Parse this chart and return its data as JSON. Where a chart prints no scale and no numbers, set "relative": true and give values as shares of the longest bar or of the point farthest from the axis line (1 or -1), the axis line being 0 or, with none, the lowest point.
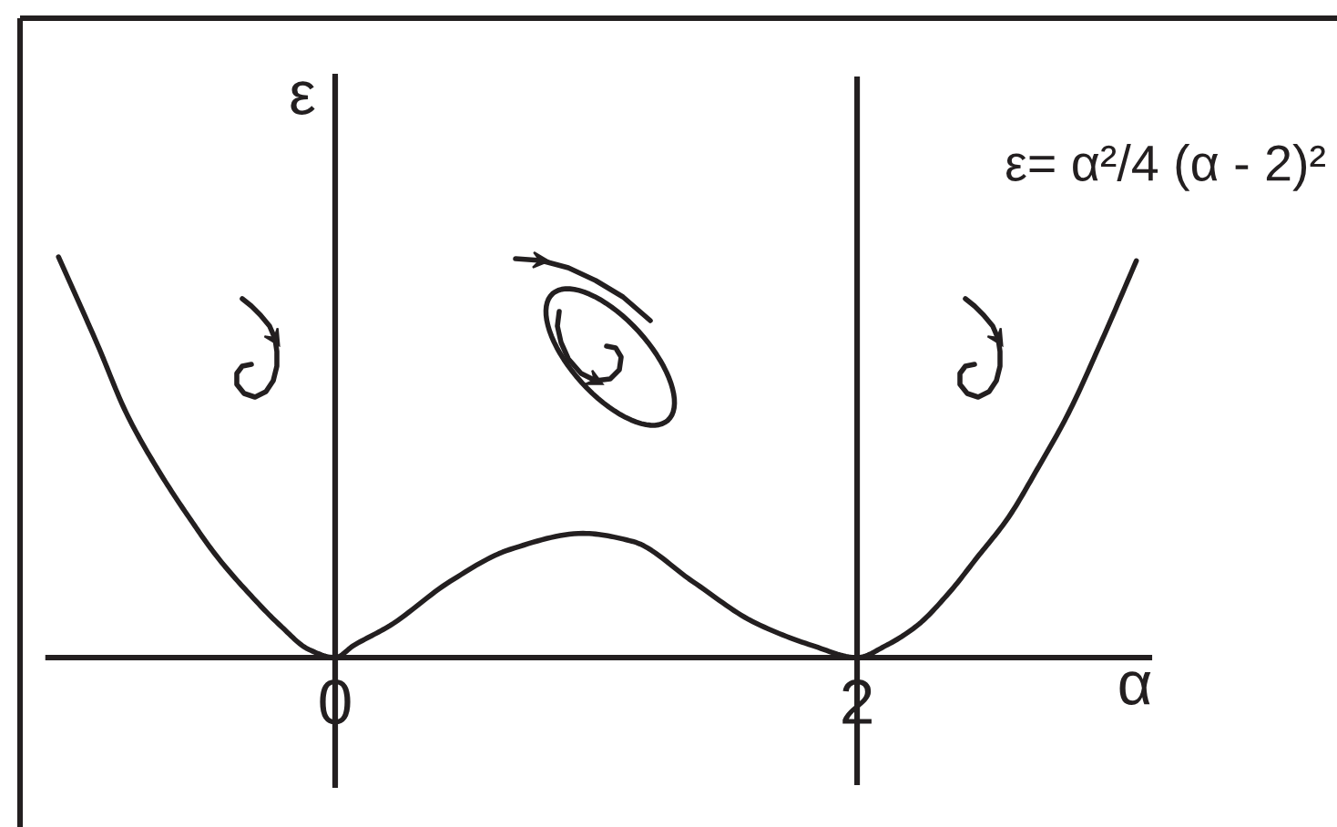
{
  "chart_data": {
    "type": "line",
    "relative": true,
    "xlabel": "α",
    "ylabel": "ε",
    "x": [
      -1.06,
      -0.91,
      -0.8,
      -0.68,
      -0.56,
      -0.45,
      -0.33,
      -0.21,
      -0.1,
      0,
      0.07,
      0.21,
      0.44,
      0.67,
      0.95,
      1.14,
      1.37,
      1.6,
      1.83,
      2,
      2.11,
      2.23,
      2.35,
      2.46,
      2.58,
      2.69,
      2.81,
      2.93,
      3.07
    ],
    "series": [
      {
        "color": "#231f20",
        "values": [
          1,
          0.78,
          0.61,
          0.47,
          0.35,
          0.25,
          0.16,
          0.08,
          0.02,
          0,
          0.03,
          0.08,
          0.19,
          0.27,
          0.31,
          0.29,
          0.19,
          0.09,
          0.03,
          0,
          0.03,
          0.08,
          0.16,
          0.25,
          0.35,
          0.47,
          0.61,
          0.78,
          0.99
        ]
      }
    ],
    "xlim": [
      -1.1,
      3.12
    ],
    "xticks": [
      0,
      2
    ],
    "grid": "x",
    "annotations": [
      "ε= α²/4 (α - 2)²"
    ],
    "line_style": "solid"
  }
}
